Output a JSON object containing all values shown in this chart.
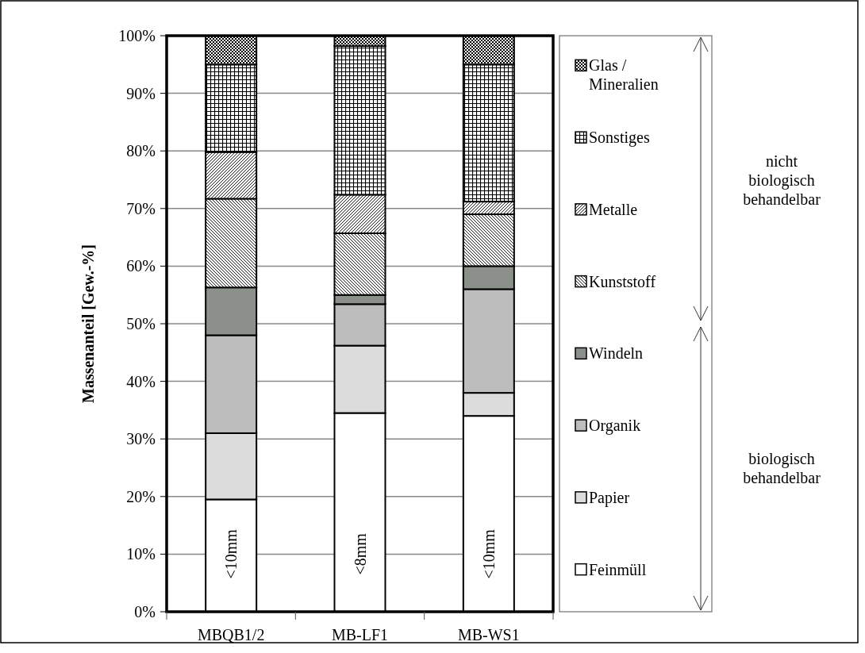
{
  "chart_data": {
    "type": "bar",
    "stacked": true,
    "ylabel": "Massenanteil [Gew.-%]",
    "categories": [
      "MBQB1/2",
      "MB-LF1",
      "MB-WS1"
    ],
    "series": [
      {
        "name": "Feinmüll",
        "color": "#ffffff",
        "values": [
          19.5,
          34.5,
          34
        ]
      },
      {
        "name": "Papier",
        "color": "#dcdcdc",
        "values": [
          11.5,
          11.7,
          4
        ]
      },
      {
        "name": "Organik",
        "color": "#bdbdbd",
        "values": [
          17,
          7.2,
          18
        ]
      },
      {
        "name": "Windeln",
        "color": "#8c908a",
        "values": [
          8.3,
          1.6,
          4
        ]
      },
      {
        "name": "Kunststoff",
        "color": "#000000",
        "values": [
          15.4,
          10.7,
          9
        ]
      },
      {
        "name": "Metalle",
        "color": "#000000",
        "values": [
          8.1,
          6.7,
          2.2
        ]
      },
      {
        "name": "Sonstiges",
        "color": "#000000",
        "values": [
          15.2,
          25.8,
          23.8
        ]
      },
      {
        "name": "Glas / Mineralien",
        "color": "#000000",
        "values": [
          5,
          1.8,
          5
        ]
      }
    ],
    "ylim": [
      0,
      100
    ],
    "yticks": [
      {
        "value": 0,
        "label": "0%"
      },
      {
        "value": 10,
        "label": "10%"
      },
      {
        "value": 20,
        "label": "20%"
      },
      {
        "value": 30,
        "label": "30%"
      },
      {
        "value": 40,
        "label": "40%"
      },
      {
        "value": 50,
        "label": "50%"
      },
      {
        "value": 60,
        "label": "60%"
      },
      {
        "value": 70,
        "label": "70%"
      },
      {
        "value": 80,
        "label": "80%"
      },
      {
        "value": 90,
        "label": "90%"
      },
      {
        "value": 100,
        "label": "100%"
      }
    ],
    "grid": "y",
    "legend": "right",
    "annotations": [
      "<10mm",
      "<8mm",
      "<10mm",
      "nicht biologisch behandelbar",
      "biologisch behandelbar"
    ]
  }
}
